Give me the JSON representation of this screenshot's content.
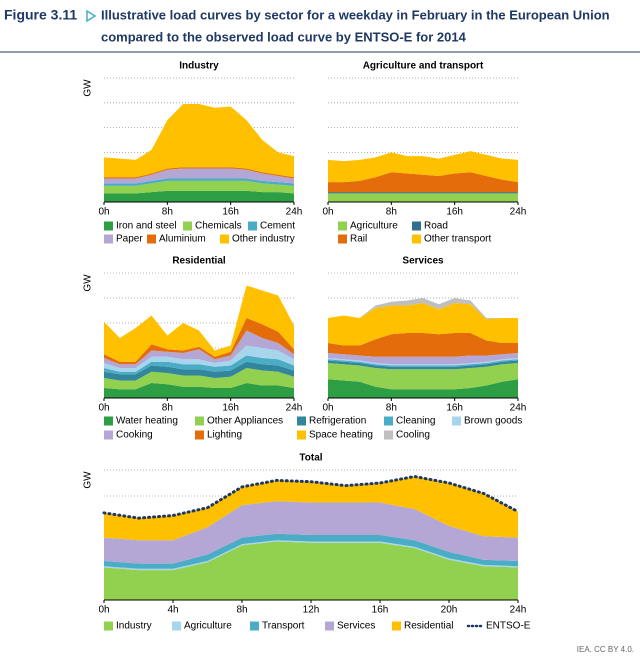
{
  "header": {
    "figure_label": "Figure 3.11",
    "title": [
      "Illustrative load curves by sector for a weekday in February in the European Union",
      "compared to the observed load curve by ENTSO-E for 2014"
    ]
  },
  "source": "IEA. CC BY 4.0.",
  "chart_data": [
    {
      "type": "area",
      "title": "Industry",
      "ylabel": "GW",
      "grid": true,
      "ylim": [
        0,
        100
      ],
      "xlim": [
        0,
        24
      ],
      "x": [
        0,
        2,
        4,
        6,
        8,
        10,
        12,
        14,
        16,
        18,
        20,
        22,
        24
      ],
      "xticks": [
        {
          "value": 0,
          "label": "0h"
        },
        {
          "value": 8,
          "label": "8h"
        },
        {
          "value": 16,
          "label": "16h"
        },
        {
          "value": 24,
          "label": "24h"
        }
      ],
      "series": [
        {
          "name": "Iron and steel",
          "color": "#2e9e44",
          "values": [
            7,
            7,
            7,
            8,
            9,
            9,
            9,
            9,
            9,
            9,
            8,
            8,
            7
          ]
        },
        {
          "name": "Chemicals",
          "color": "#92d050",
          "values": [
            6,
            6,
            6,
            7,
            8,
            8,
            8,
            8,
            8,
            8,
            7,
            6,
            6
          ]
        },
        {
          "name": "Cement",
          "color": "#4bacc6",
          "values": [
            2,
            2,
            2,
            2,
            2,
            2,
            2,
            2,
            2,
            2,
            2,
            2,
            2
          ]
        },
        {
          "name": "Paper",
          "color": "#b4a7d6",
          "values": [
            4,
            4,
            4,
            5,
            7,
            8,
            8,
            8,
            8,
            7,
            6,
            5,
            4
          ]
        },
        {
          "name": "Aluminium",
          "color": "#e46c0a",
          "values": [
            1,
            1,
            1,
            1,
            1,
            1,
            1,
            1,
            1,
            1,
            1,
            1,
            1
          ]
        },
        {
          "name": "Other industry",
          "color": "#ffc000",
          "values": [
            16,
            15,
            14,
            19,
            39,
            51,
            51,
            48,
            49,
            39,
            26,
            18,
            17
          ]
        }
      ]
    },
    {
      "type": "area",
      "title": "Agriculture and transport",
      "grid": true,
      "ylim": [
        0,
        100
      ],
      "xlim": [
        0,
        24
      ],
      "x": [
        0,
        2,
        4,
        6,
        8,
        10,
        12,
        14,
        16,
        18,
        20,
        22,
        24
      ],
      "xticks": [
        {
          "value": 0,
          "label": "0h"
        },
        {
          "value": 8,
          "label": "8h"
        },
        {
          "value": 16,
          "label": "16h"
        },
        {
          "value": 24,
          "label": "24h"
        }
      ],
      "series": [
        {
          "name": "Agriculture",
          "color": "#92d050",
          "values": [
            7,
            7,
            7,
            7,
            7,
            7,
            7,
            7,
            7,
            7,
            7,
            7,
            7
          ]
        },
        {
          "name": "Road",
          "color": "#31708f",
          "values": [
            1,
            1,
            1,
            1,
            1,
            1,
            1,
            1,
            1,
            1,
            1,
            1,
            1
          ]
        },
        {
          "name": "Rail",
          "color": "#e46c0a",
          "values": [
            8,
            8,
            9,
            12,
            16,
            15,
            14,
            13,
            15,
            16,
            13,
            10,
            8
          ]
        },
        {
          "name": "Other  transport",
          "color": "#ffc000",
          "values": [
            18,
            17,
            17,
            16,
            16,
            14,
            15,
            14,
            15,
            17,
            17,
            17,
            18
          ]
        }
      ]
    },
    {
      "type": "area",
      "title": "Residential",
      "ylabel": "GW",
      "grid": true,
      "ylim": [
        0,
        100
      ],
      "xlim": [
        0,
        24
      ],
      "x": [
        0,
        2,
        4,
        6,
        8,
        10,
        12,
        14,
        16,
        18,
        20,
        22,
        24
      ],
      "xticks": [
        {
          "value": 0,
          "label": "0h"
        },
        {
          "value": 8,
          "label": "8h"
        },
        {
          "value": 16,
          "label": "16h"
        },
        {
          "value": 24,
          "label": "24h"
        }
      ],
      "series": [
        {
          "name": "Water heating",
          "color": "#2e9e44",
          "values": [
            8,
            7,
            7,
            12,
            11,
            9,
            9,
            8,
            8,
            12,
            10,
            10,
            8
          ]
        },
        {
          "name": "Other Appliances",
          "color": "#92d050",
          "values": [
            8,
            7,
            7,
            9,
            9,
            9,
            9,
            8,
            9,
            12,
            12,
            11,
            9
          ]
        },
        {
          "name": "Refrigeration",
          "color": "#31859c",
          "values": [
            5,
            5,
            5,
            5,
            5,
            5,
            5,
            5,
            5,
            5,
            5,
            5,
            5
          ]
        },
        {
          "name": "Cleaning",
          "color": "#4bacc6",
          "values": [
            3,
            2,
            2,
            3,
            4,
            4,
            4,
            4,
            4,
            5,
            5,
            5,
            4
          ]
        },
        {
          "name": "Brown goods",
          "color": "#a6d5ec",
          "values": [
            4,
            3,
            3,
            4,
            4,
            4,
            4,
            3,
            4,
            8,
            8,
            7,
            5
          ]
        },
        {
          "name": "Cooking",
          "color": "#b4a7d6",
          "values": [
            4,
            3,
            3,
            5,
            4,
            5,
            8,
            3,
            4,
            12,
            8,
            6,
            4
          ]
        },
        {
          "name": "Lighting",
          "color": "#e46c0a",
          "values": [
            3,
            2,
            2,
            5,
            2,
            2,
            2,
            2,
            3,
            10,
            11,
            9,
            4
          ]
        },
        {
          "name": "Space heating",
          "color": "#ffc000",
          "values": [
            26,
            19,
            27,
            23,
            11,
            22,
            13,
            5,
            5,
            26,
            27,
            29,
            19
          ]
        },
        {
          "name": "Cooling",
          "color": "#bfbfbf",
          "values": [
            0,
            0,
            0,
            0,
            0,
            0,
            0,
            0,
            0,
            0,
            0,
            0,
            0
          ]
        }
      ]
    },
    {
      "type": "area",
      "title": "Services",
      "grid": true,
      "ylim": [
        0,
        100
      ],
      "xlim": [
        0,
        24
      ],
      "x": [
        0,
        2,
        4,
        6,
        8,
        10,
        12,
        14,
        16,
        18,
        20,
        22,
        24
      ],
      "xticks": [
        {
          "value": 0,
          "label": "0h"
        },
        {
          "value": 8,
          "label": "8h"
        },
        {
          "value": 16,
          "label": "16h"
        },
        {
          "value": 24,
          "label": "24h"
        }
      ],
      "series": [
        {
          "color": "#2e9e44",
          "values": [
            15,
            14,
            13,
            9,
            7,
            7,
            7,
            7,
            7,
            8,
            10,
            13,
            15
          ]
        },
        {
          "color": "#92d050",
          "values": [
            13,
            13,
            13,
            15,
            16,
            16,
            16,
            16,
            16,
            16,
            15,
            14,
            13
          ]
        },
        {
          "color": "#31859c",
          "values": [
            2,
            2,
            2,
            2,
            2,
            2,
            2,
            2,
            2,
            2,
            2,
            2,
            2
          ]
        },
        {
          "color": "#4bacc6",
          "values": [
            1,
            1,
            1,
            1,
            1,
            1,
            1,
            1,
            1,
            1,
            1,
            1,
            1
          ]
        },
        {
          "color": "#a6d5ec",
          "values": [
            1,
            1,
            1,
            1,
            1,
            1,
            1,
            1,
            1,
            1,
            1,
            1,
            1
          ]
        },
        {
          "color": "#b4a7d6",
          "values": [
            4,
            4,
            4,
            5,
            6,
            6,
            6,
            6,
            6,
            6,
            5,
            4,
            4
          ]
        },
        {
          "color": "#e46c0a",
          "values": [
            8,
            7,
            8,
            14,
            18,
            19,
            19,
            18,
            19,
            18,
            12,
            9,
            8
          ]
        },
        {
          "color": "#ffc000",
          "values": [
            20,
            24,
            22,
            25,
            23,
            22,
            24,
            20,
            24,
            23,
            17,
            20,
            20
          ]
        },
        {
          "color": "#bfbfbf",
          "values": [
            0,
            0,
            0,
            2,
            3,
            4,
            4,
            4,
            4,
            3,
            1,
            0,
            0
          ]
        }
      ]
    },
    {
      "type": "area",
      "title": "Total",
      "ylabel": "GW",
      "grid": true,
      "ylim": [
        0,
        100
      ],
      "xlim": [
        0,
        24
      ],
      "x": [
        0,
        2,
        4,
        6,
        8,
        10,
        12,
        14,
        16,
        18,
        20,
        22,
        24
      ],
      "xticks": [
        {
          "value": 0,
          "label": "0h"
        },
        {
          "value": 4,
          "label": "4h"
        },
        {
          "value": 8,
          "label": "8h"
        },
        {
          "value": 12,
          "label": "12h"
        },
        {
          "value": 16,
          "label": "16h"
        },
        {
          "value": 20,
          "label": "20h"
        },
        {
          "value": 24,
          "label": "24h"
        }
      ],
      "series": [
        {
          "name": "Industry",
          "color": "#92d050",
          "values": [
            25,
            23,
            23,
            29,
            42,
            45,
            44,
            44,
            44,
            40,
            31,
            26,
            25
          ]
        },
        {
          "name": "Agriculture",
          "color": "#a6d5ec",
          "values": [
            1,
            1,
            1,
            1,
            1,
            1,
            1,
            1,
            1,
            1,
            1,
            1,
            1
          ]
        },
        {
          "name": "Transport",
          "color": "#4bacc6",
          "values": [
            4,
            4,
            4,
            5,
            5,
            5,
            5,
            5,
            5,
            5,
            5,
            4,
            4
          ]
        },
        {
          "name": "Services",
          "color": "#b4a7d6",
          "values": [
            18,
            18,
            18,
            21,
            25,
            25,
            25,
            25,
            25,
            24,
            20,
            18,
            18
          ]
        },
        {
          "name": "Residential",
          "color": "#ffc000",
          "values": [
            19,
            17,
            19,
            15,
            14,
            16,
            16,
            13,
            15,
            25,
            33,
            33,
            20
          ]
        },
        {
          "name": "ENTSO-E",
          "color": "#1f3864",
          "type": "line",
          "values": [
            67,
            63,
            65,
            71,
            87,
            92,
            91,
            88,
            90,
            95,
            90,
            82,
            68
          ]
        }
      ]
    }
  ]
}
